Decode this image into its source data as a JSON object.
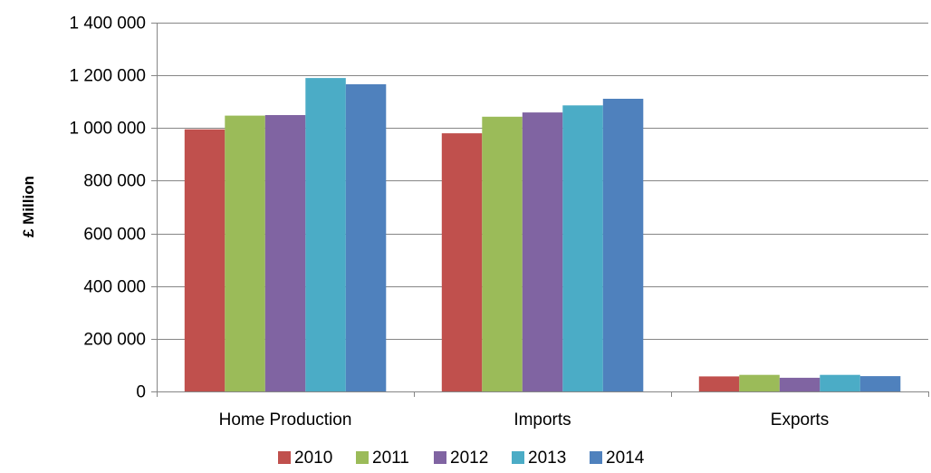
{
  "chart_data": {
    "type": "bar",
    "categories": [
      "Home Production",
      "Imports",
      "Exports"
    ],
    "series": [
      {
        "name": "2010",
        "color": "#c0504d",
        "values": [
          995000,
          980000,
          57000
        ]
      },
      {
        "name": "2011",
        "color": "#9bbb59",
        "values": [
          1047000,
          1043000,
          63000
        ]
      },
      {
        "name": "2012",
        "color": "#8064a2",
        "values": [
          1049000,
          1059000,
          52000
        ]
      },
      {
        "name": "2013",
        "color": "#4bacc6",
        "values": [
          1190000,
          1086000,
          63000
        ]
      },
      {
        "name": "2014",
        "color": "#4f81bd",
        "values": [
          1166000,
          1111000,
          58000
        ]
      }
    ],
    "title": "",
    "xlabel": "",
    "ylabel": "£ Million",
    "ylim": [
      0,
      1400000
    ],
    "yticks": [
      0,
      200000,
      400000,
      600000,
      800000,
      1000000,
      1200000,
      1400000
    ],
    "ytick_labels": [
      "0",
      "200 000",
      "400 000",
      "600 000",
      "800 000",
      "1 000 000",
      "1 200 000",
      "1 400 000"
    ],
    "grid": true,
    "legend_position": "bottom",
    "gridline_color": "#868686",
    "axis_color": "#868686"
  }
}
